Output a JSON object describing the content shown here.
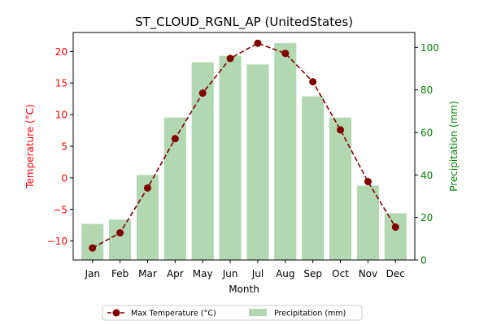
{
  "chart_data": {
    "type": "bar+line",
    "title": "ST_CLOUD_RGNL_AP (UnitedStates)",
    "xlabel": "Month",
    "categories": [
      "Jan",
      "Feb",
      "Mar",
      "Apr",
      "May",
      "Jun",
      "Jul",
      "Aug",
      "Sep",
      "Oct",
      "Nov",
      "Dec"
    ],
    "y_left": {
      "label": "Temperature (°C)",
      "color": "#ff0000",
      "lim": [
        -13,
        23
      ],
      "ticks": [
        -10,
        -5,
        0,
        5,
        10,
        15,
        20
      ],
      "tick_labels": [
        "−10",
        "−5",
        "0",
        "5",
        "10",
        "15",
        "20"
      ]
    },
    "y_right": {
      "label": "Precipitation (mm)",
      "color": "#008000",
      "lim": [
        0,
        107
      ],
      "ticks": [
        0,
        20,
        40,
        60,
        80,
        100
      ],
      "tick_labels": [
        "0",
        "20",
        "40",
        "60",
        "80",
        "100"
      ]
    },
    "series": [
      {
        "name": "Max Temperature (°C)",
        "type": "line",
        "axis": "left",
        "color": "#800000",
        "values": [
          -11.1,
          -8.7,
          -1.6,
          6.2,
          13.4,
          18.9,
          21.3,
          19.7,
          15.2,
          7.6,
          -0.6,
          -7.8
        ]
      },
      {
        "name": "Precipitation (mm)",
        "type": "bar",
        "axis": "right",
        "color": "#b2d8b2",
        "values": [
          17,
          19,
          40,
          67,
          93,
          96,
          92,
          102,
          77,
          67,
          35,
          22
        ]
      }
    ],
    "legend": {
      "position": "bottom-center",
      "entries": [
        "Max Temperature (°C)",
        "Precipitation (mm)"
      ]
    }
  }
}
